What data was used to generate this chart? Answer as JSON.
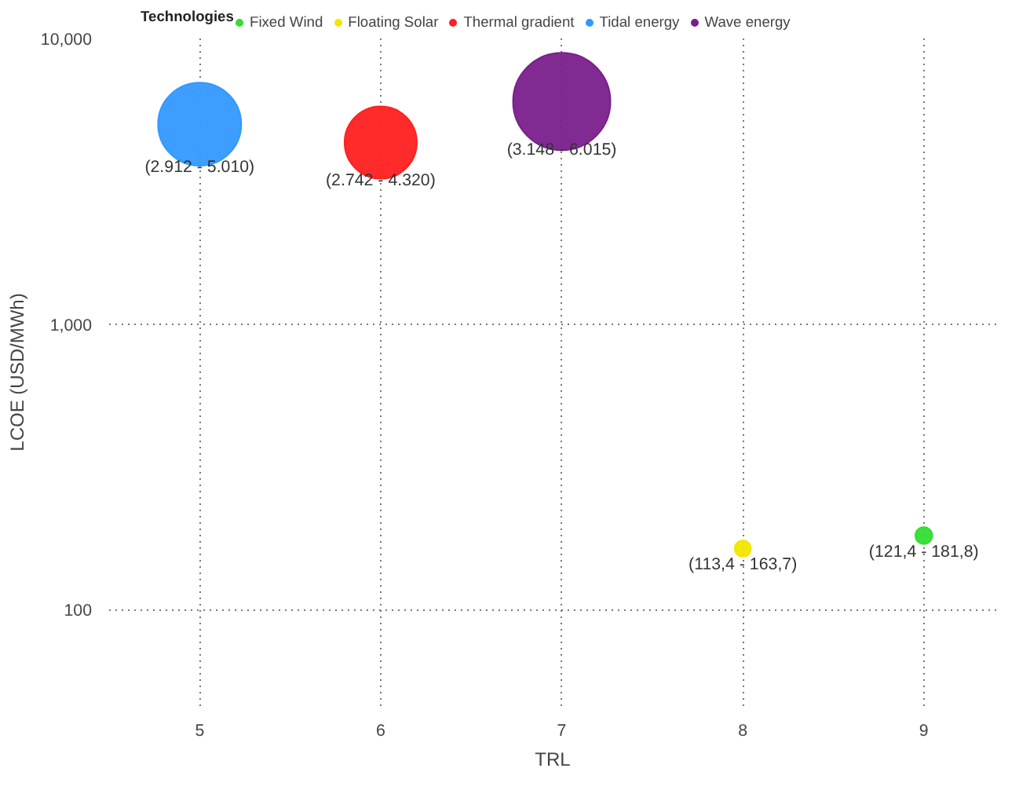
{
  "chart_data": {
    "type": "bubble",
    "xlabel": "TRL",
    "ylabel": "LCOE (USD/MWh)",
    "legend_title": "Technologies",
    "legend": "top left",
    "log": "y",
    "grid": true,
    "xlim": [
      4.5,
      9.4
    ],
    "xticks": [
      5,
      6,
      7,
      8,
      9
    ],
    "ylim": [
      46,
      10000
    ],
    "yticks": [
      {
        "value": 100,
        "label": "100"
      },
      {
        "value": 1000,
        "label": "1,000"
      },
      {
        "value": 10000,
        "label": "10,000"
      }
    ],
    "series": [
      {
        "name": "Fixed Wind",
        "color": "#33dd33",
        "x": [
          9
        ],
        "values": [
          181.8
        ],
        "sizes": [
          0.03
        ]
      },
      {
        "name": "Floating Solar",
        "color": "#f2e600",
        "x": [
          8
        ],
        "values": [
          163.7
        ],
        "sizes": [
          0.028
        ]
      },
      {
        "name": "Thermal gradient",
        "color": "#ff2020",
        "x": [
          6
        ],
        "values": [
          4320
        ],
        "sizes": [
          0.55
        ]
      },
      {
        "name": "Tidal energy",
        "color": "#3399ff",
        "x": [
          5
        ],
        "values": [
          5010
        ],
        "sizes": [
          0.73
        ]
      },
      {
        "name": "Wave energy",
        "color": "#7a1f8c",
        "x": [
          7
        ],
        "values": [
          6015
        ],
        "sizes": [
          1
        ]
      }
    ],
    "annotations": [
      {
        "text": "(121,4 - 181,8)",
        "x": 9,
        "y": 181.8
      },
      {
        "text": "(113,4 - 163,7)",
        "x": 8,
        "y": 163.7
      },
      {
        "text": "(2.742 - 4.320)",
        "x": 6,
        "y": 4320
      },
      {
        "text": "(2.912 - 5.010)",
        "x": 5,
        "y": 5010
      },
      {
        "text": "(3.148 - 6.015)",
        "x": 7,
        "y": 6015
      }
    ]
  }
}
